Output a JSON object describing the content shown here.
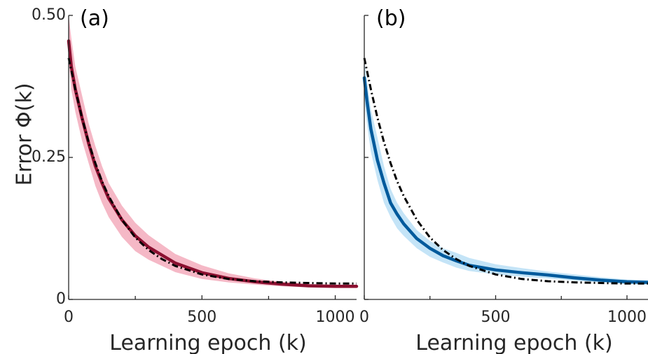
{
  "chart_data": [
    {
      "type": "line",
      "panel_label": "(a)",
      "xlabel": "Learning epoch (k)",
      "ylabel": "Error Φ(k)",
      "xlim": [
        0,
        1080
      ],
      "ylim": [
        0,
        0.5
      ],
      "x_ticks": [
        "0",
        "500",
        "1000"
      ],
      "y_ticks": [
        "0",
        "0.25",
        "0.50"
      ],
      "x_tick_values": [
        0,
        500,
        1000
      ],
      "y_tick_values": [
        0,
        0.25,
        0.5
      ],
      "grid": false,
      "colors": {
        "mean": "#8b1030",
        "band": "#f5b8c6",
        "fit": "#000000"
      },
      "series": [
        {
          "x": [
            0,
            10,
            25,
            50,
            75,
            100,
            125,
            150,
            200,
            250,
            300,
            400,
            500,
            600,
            700,
            800,
            900,
            1000,
            1080
          ],
          "values": [
            0.455,
            0.41,
            0.37,
            0.32,
            0.275,
            0.235,
            0.205,
            0.178,
            0.14,
            0.112,
            0.092,
            0.064,
            0.047,
            0.037,
            0.031,
            0.027,
            0.024,
            0.023,
            0.023
          ],
          "lower": [
            0.42,
            0.37,
            0.33,
            0.28,
            0.24,
            0.2,
            0.17,
            0.145,
            0.11,
            0.085,
            0.07,
            0.048,
            0.036,
            0.03,
            0.026,
            0.023,
            0.021,
            0.02,
            0.02
          ],
          "upper": [
            0.5,
            0.46,
            0.41,
            0.36,
            0.31,
            0.27,
            0.235,
            0.205,
            0.165,
            0.135,
            0.113,
            0.08,
            0.06,
            0.046,
            0.037,
            0.031,
            0.027,
            0.026,
            0.026
          ]
        },
        {
          "style": "dash-dot",
          "x": [
            0,
            25,
            50,
            75,
            100,
            125,
            150,
            200,
            250,
            300,
            350,
            400,
            500,
            600,
            700,
            800,
            900,
            1000,
            1080
          ],
          "values": [
            0.425,
            0.37,
            0.32,
            0.277,
            0.24,
            0.208,
            0.182,
            0.14,
            0.109,
            0.087,
            0.071,
            0.059,
            0.044,
            0.036,
            0.032,
            0.03,
            0.029,
            0.028,
            0.028
          ]
        }
      ]
    },
    {
      "type": "line",
      "panel_label": "(b)",
      "xlabel": "Learning epoch (k)",
      "xlim": [
        0,
        1080
      ],
      "ylim": [
        0,
        0.5
      ],
      "x_ticks": [
        "0",
        "500",
        "1000"
      ],
      "x_tick_values": [
        0,
        500,
        1000
      ],
      "y_tick_values": [
        0,
        0.25,
        0.5
      ],
      "grid": false,
      "colors": {
        "mean": "#005a9c",
        "band": "#c4e4f7",
        "fit": "#000000"
      },
      "series": [
        {
          "x": [
            0,
            10,
            25,
            50,
            75,
            100,
            125,
            150,
            200,
            250,
            300,
            350,
            400,
            500,
            600,
            700,
            800,
            900,
            1000,
            1080
          ],
          "values": [
            0.39,
            0.35,
            0.3,
            0.245,
            0.205,
            0.17,
            0.15,
            0.133,
            0.107,
            0.09,
            0.077,
            0.068,
            0.06,
            0.052,
            0.047,
            0.043,
            0.038,
            0.034,
            0.031,
            0.03
          ],
          "lower": [
            0.35,
            0.31,
            0.26,
            0.21,
            0.17,
            0.145,
            0.125,
            0.112,
            0.09,
            0.075,
            0.065,
            0.056,
            0.05,
            0.044,
            0.04,
            0.037,
            0.033,
            0.03,
            0.027,
            0.026
          ],
          "upper": [
            0.42,
            0.385,
            0.335,
            0.285,
            0.235,
            0.195,
            0.17,
            0.152,
            0.122,
            0.103,
            0.09,
            0.082,
            0.073,
            0.062,
            0.055,
            0.049,
            0.044,
            0.039,
            0.035,
            0.034
          ]
        },
        {
          "style": "dash-dot",
          "x": [
            0,
            25,
            50,
            75,
            100,
            125,
            150,
            200,
            250,
            300,
            350,
            400,
            500,
            600,
            700,
            800,
            900,
            1000,
            1080
          ],
          "values": [
            0.425,
            0.37,
            0.32,
            0.277,
            0.24,
            0.208,
            0.182,
            0.14,
            0.109,
            0.087,
            0.071,
            0.059,
            0.044,
            0.036,
            0.032,
            0.03,
            0.029,
            0.028,
            0.028
          ]
        }
      ]
    }
  ]
}
